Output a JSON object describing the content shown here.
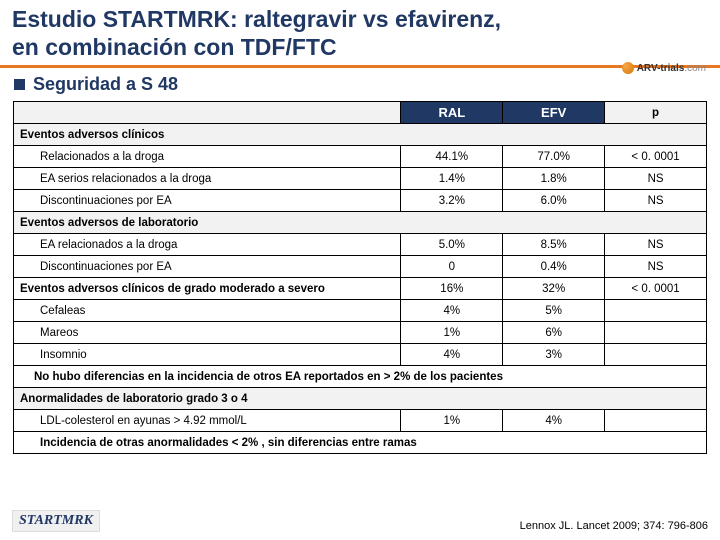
{
  "title_line1": "Estudio STARTMRK: raltegravir vs efavirenz,",
  "title_line2": "en combinación con TDF/FTC",
  "logo_text": "ARV-trials",
  "logo_suffix": ".com",
  "subtitle": "Seguridad a S 48",
  "headers": {
    "col1": "",
    "ral": "RAL",
    "efv": "EFV",
    "p": "p"
  },
  "sections": {
    "s1": "Eventos adversos clínicos",
    "s2": "Eventos adversos de laboratorio",
    "s3": "Anormalidades de laboratorio grado 3 o 4"
  },
  "rows": {
    "r1": {
      "label": "Relacionados a la droga",
      "ral": "44.1%",
      "efv": "77.0%",
      "p": "< 0. 0001"
    },
    "r2": {
      "label": "EA serios relacionados a la droga",
      "ral": "1.4%",
      "efv": "1.8%",
      "p": "NS"
    },
    "r3": {
      "label": "Discontinuaciones por EA",
      "ral": "3.2%",
      "efv": "6.0%",
      "p": "NS"
    },
    "r4": {
      "label": "EA relacionados a la droga",
      "ral": "5.0%",
      "efv": "8.5%",
      "p": "NS"
    },
    "r5": {
      "label": "Discontinuaciones por EA",
      "ral": "0",
      "efv": "0.4%",
      "p": "NS"
    },
    "r6": {
      "label": "Eventos adversos clínicos de grado moderado a severo",
      "ral": "16%",
      "efv": "32%",
      "p": "< 0. 0001"
    },
    "r7": {
      "label": "Cefaleas",
      "ral": "4%",
      "efv": "5%",
      "p": ""
    },
    "r8": {
      "label": "Mareos",
      "ral": "1%",
      "efv": "6%",
      "p": ""
    },
    "r9": {
      "label": "Insomnio",
      "ral": "4%",
      "efv": "3%",
      "p": ""
    },
    "note": "No hubo diferencias en la incidencia de otros EA reportados  en > 2% de los pacientes",
    "r10": {
      "label": "LDL-colesterol en ayunas > 4.92 mmol/L",
      "ral": "1%",
      "efv": "4%",
      "p": ""
    },
    "r11": {
      "label": "Incidencia de otras anormalidades < 2% , sin diferencias entre ramas"
    }
  },
  "footer_left": "STARTMRK",
  "footer_right": "Lennox JL. Lancet 2009; 374: 796-806"
}
